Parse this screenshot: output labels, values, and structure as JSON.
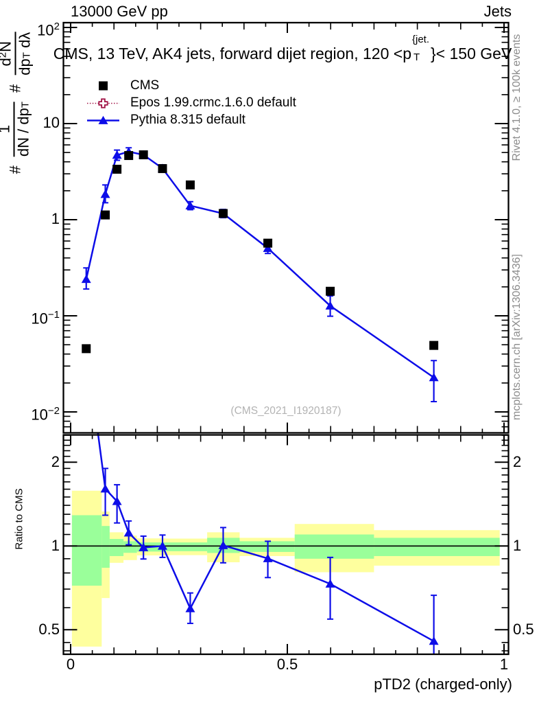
{
  "header": {
    "left": "13000 GeV pp",
    "right": "Jets"
  },
  "plot_title": {
    "pre": "CMS, 13 TeV, AK4 jets, forward dijet region, 120 <p",
    "sup": "{jet.",
    "sub": "T",
    "post": "}< 150 GeV"
  },
  "y_axis_label": {
    "hash1": "#",
    "num1": "1",
    "den1_a": "dN / dp",
    "den1_sub": "T",
    "hash2": "#",
    "num2_a": "d",
    "num2_sup": "2",
    "num2_b": "N",
    "den2_a": "dp",
    "den2_sub": "T",
    "den2_b": " dλ"
  },
  "ratio_axis_label": "Ratio to CMS",
  "x_axis_title": "pTD2 (charged-only)",
  "watermark": "(CMS_2021_I1920187)",
  "side_notes": {
    "top": "Rivet 4.1.0, ≥ 100k events",
    "bottom": "mcplots.cern.ch [arXiv:1306.3436]"
  },
  "legend": [
    {
      "label": "CMS",
      "marker": "filled-square",
      "color": "#000000"
    },
    {
      "label": "Epos 1.99.crmc.1.6.0 default",
      "marker": "open-cross",
      "line": "dotted",
      "color": "#a11346"
    },
    {
      "label": "Pythia 8.315 default",
      "marker": "filled-triangle",
      "line": "solid",
      "color": "#0d0de8"
    }
  ],
  "axes": {
    "x": {
      "ticks": [
        {
          "v": 0,
          "label": "0"
        },
        {
          "v": 0.5,
          "label": "0.5"
        },
        {
          "v": 1,
          "label": "1"
        }
      ],
      "range": [
        -0.017,
        1.01
      ]
    },
    "main_y": {
      "scale": "log",
      "range": [
        0.0061,
        112
      ],
      "ticks": [
        {
          "v": 100,
          "base": "10",
          "exp": "2"
        },
        {
          "v": 10,
          "base": "10",
          "exp": ""
        },
        {
          "v": 1,
          "base": "1",
          "exp": ""
        },
        {
          "v": 0.1,
          "base": "10",
          "exp": "−1"
        },
        {
          "v": 0.01,
          "base": "10",
          "exp": "−2"
        }
      ]
    },
    "ratio_y": {
      "scale": "log",
      "range": [
        0.407,
        2.512
      ],
      "ticks": [
        {
          "v": 2,
          "label": "2"
        },
        {
          "v": 1,
          "label": "1"
        },
        {
          "v": 0.5,
          "label": "0.5"
        }
      ]
    }
  },
  "chart_data": [
    {
      "type": "scatter",
      "panel": "main",
      "yscale": "log",
      "xlabel": "pTD2 (charged-only)",
      "series": [
        {
          "name": "CMS",
          "marker": "square",
          "color": "#000000",
          "points": [
            [
              0.036,
              0.0455
            ],
            [
              0.08,
              1.12
            ],
            [
              0.107,
              3.35
            ],
            [
              0.134,
              4.65
            ],
            [
              0.168,
              4.73
            ],
            [
              0.212,
              3.4
            ],
            [
              0.276,
              2.3
            ],
            [
              0.352,
              1.16
            ],
            [
              0.455,
              0.57
            ],
            [
              0.599,
              0.18
            ],
            [
              0.838,
              0.0492
            ]
          ]
        },
        {
          "name": "Pythia 8.315 default",
          "marker": "triangle",
          "color": "#0d0de8",
          "points": [
            [
              0.036,
              0.24,
              0.19,
              0.315
            ],
            [
              0.08,
              1.84,
              1.5,
              2.3
            ],
            [
              0.107,
              4.7,
              4.15,
              5.3
            ],
            [
              0.134,
              5.1,
              4.65,
              5.6
            ],
            [
              0.168,
              4.73,
              4.4,
              5.08
            ],
            [
              0.212,
              3.42,
              3.15,
              3.72
            ],
            [
              0.276,
              1.4,
              1.27,
              1.54
            ],
            [
              0.352,
              1.16,
              1.05,
              1.28
            ],
            [
              0.455,
              0.505,
              0.445,
              0.575
            ],
            [
              0.599,
              0.127,
              0.099,
              0.161
            ],
            [
              0.838,
              0.0228,
              0.0128,
              0.0342
            ]
          ]
        }
      ]
    },
    {
      "type": "ratio",
      "panel": "ratio",
      "reference_line": 1,
      "bands": [
        {
          "x0": 0.003,
          "x1": 0.0717,
          "yellow": [
            0.435,
            1.58
          ],
          "green": [
            0.72,
            1.29
          ]
        },
        {
          "x0": 0.0717,
          "x1": 0.09,
          "yellow": [
            0.65,
            1.33
          ],
          "green": [
            0.835,
            1.18
          ]
        },
        {
          "x0": 0.09,
          "x1": 0.122,
          "yellow": [
            0.87,
            1.12
          ],
          "green": [
            0.92,
            1.06
          ]
        },
        {
          "x0": 0.122,
          "x1": 0.153,
          "yellow": [
            0.89,
            1.09
          ],
          "green": [
            0.945,
            1.04
          ]
        },
        {
          "x0": 0.153,
          "x1": 0.2195,
          "yellow": [
            0.925,
            1.065
          ],
          "green": [
            0.955,
            1.03
          ]
        },
        {
          "x0": 0.2195,
          "x1": 0.315,
          "yellow": [
            0.927,
            1.063
          ],
          "green": [
            0.958,
            1.03
          ]
        },
        {
          "x0": 0.315,
          "x1": 0.39,
          "yellow": [
            0.874,
            1.12
          ],
          "green": [
            0.944,
            1.07
          ]
        },
        {
          "x0": 0.39,
          "x1": 0.517,
          "yellow": [
            0.92,
            1.07
          ],
          "green": [
            0.952,
            1.04
          ]
        },
        {
          "x0": 0.517,
          "x1": 0.7,
          "yellow": [
            0.805,
            1.2
          ],
          "green": [
            0.9,
            1.1
          ]
        },
        {
          "x0": 0.7,
          "x1": 0.99,
          "yellow": [
            0.85,
            1.14
          ],
          "green": [
            0.92,
            1.07
          ]
        }
      ],
      "series": [
        {
          "name": "Pythia 8.315 default / CMS",
          "color": "#0d0de8",
          "points": [
            [
              0.036,
              5.3,
              null,
              null
            ],
            [
              0.08,
              1.605,
              1.29,
              1.9
            ],
            [
              0.107,
              1.447,
              1.21,
              1.66
            ],
            [
              0.134,
              1.115,
              1.01,
              1.23
            ],
            [
              0.168,
              0.988,
              0.898,
              1.085
            ],
            [
              0.212,
              1.0,
              0.91,
              1.095
            ],
            [
              0.276,
              0.596,
              0.527,
              0.678
            ],
            [
              0.352,
              1.005,
              0.87,
              1.165
            ],
            [
              0.455,
              0.902,
              0.77,
              1.04
            ],
            [
              0.599,
              0.731,
              0.546,
              0.91
            ],
            [
              0.838,
              0.455,
              0.375,
              0.665
            ]
          ]
        }
      ]
    }
  ],
  "colors": {
    "band_green": "#9aff9a",
    "band_yellow": "#feff9e",
    "blue": "#0d0de8",
    "epos_red": "#a11346",
    "frame": "#000000"
  }
}
